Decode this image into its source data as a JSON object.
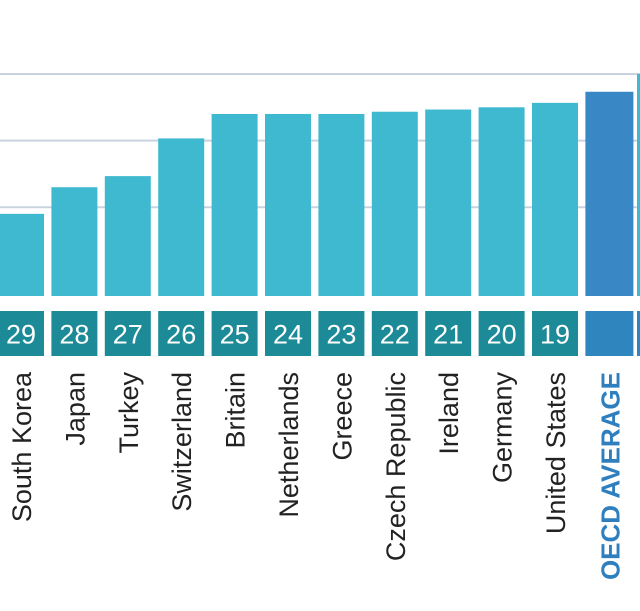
{
  "chart_data": {
    "type": "bar",
    "orientation": "vertical",
    "title": "",
    "xlabel": "",
    "ylabel": "",
    "grid": true,
    "y_gridlines": [
      40,
      70,
      100
    ],
    "ylim": [
      0,
      100
    ],
    "categories": [
      "South Korea",
      "Japan",
      "Turkey",
      "Switzerland",
      "Britain",
      "Netherlands",
      "Greece",
      "Czech Republic",
      "Ireland",
      "Germany",
      "United States",
      "OECD AVERAGE"
    ],
    "ranks": [
      "29",
      "28",
      "27",
      "26",
      "25",
      "24",
      "23",
      "22",
      "21",
      "20",
      "19",
      ""
    ],
    "values": [
      37,
      49,
      54,
      71,
      82,
      82,
      82,
      83,
      84,
      85,
      87,
      92
    ],
    "highlight_category": "OECD AVERAGE"
  },
  "colors": {
    "bar": "#3fb9cf",
    "bar_highlight": "#3a87c5",
    "rank_box": "#1d8a98",
    "rank_box_highlight": "#2f86bf",
    "gridline": "#c9d3df",
    "country_text": "#222222",
    "avg_text": "#2f7fbf"
  }
}
